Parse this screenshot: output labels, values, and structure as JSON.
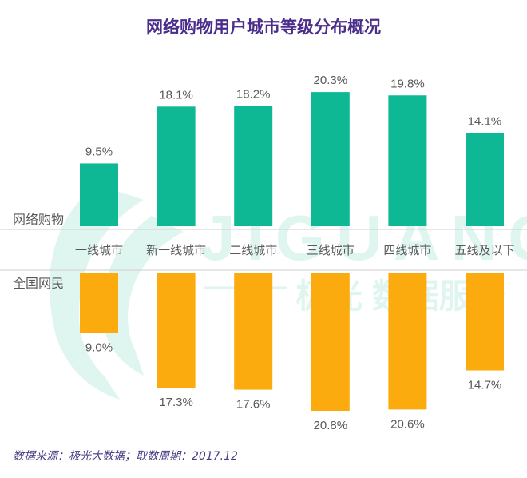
{
  "title": "网络购物用户城市等级分布概况",
  "source": "数据来源：极光大数据；取数周期：2017.12",
  "watermark": {
    "brand": "JIGUANG",
    "tagline": "极光 数据服务"
  },
  "colors": {
    "online_shopping": "#0fb894",
    "all_netizens": "#fcab0e",
    "title": "#4b2e8c",
    "label": "#595959",
    "divider": "#d6d6d6"
  },
  "chart_data": {
    "type": "bar",
    "title": "网络购物用户城市等级分布概况",
    "orientation": "mirrored (top series upward, bottom series downward)",
    "categories": [
      "一线城市",
      "新一线城市",
      "二线城市",
      "三线城市",
      "四线城市",
      "五线及以下"
    ],
    "series": [
      {
        "name": "网络购物",
        "values": [
          9.5,
          18.1,
          18.2,
          20.3,
          19.8,
          14.1
        ],
        "labels": [
          "9.5%",
          "18.1%",
          "18.2%",
          "20.3%",
          "19.8%",
          "14.1%"
        ]
      },
      {
        "name": "全国网民",
        "values": [
          9.0,
          17.3,
          17.6,
          20.8,
          20.6,
          14.7
        ],
        "labels": [
          "9.0%",
          "17.3%",
          "17.6%",
          "20.8%",
          "20.6%",
          "14.7%"
        ]
      }
    ],
    "unit": "%",
    "xlabel": "",
    "ylabel": "",
    "grid": false,
    "legend": "left (series names as row labels)"
  }
}
